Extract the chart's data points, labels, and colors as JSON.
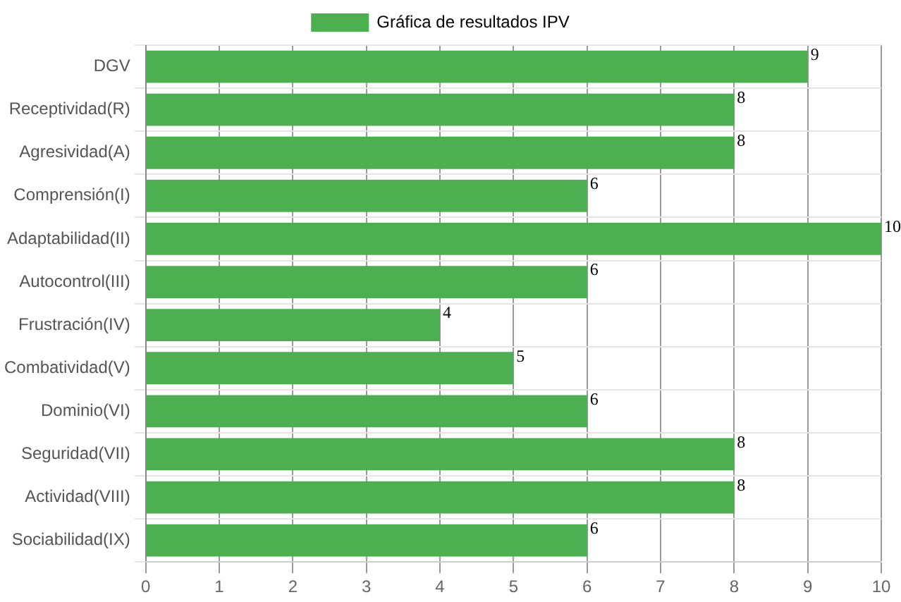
{
  "chart_data": {
    "type": "bar",
    "orientation": "horizontal",
    "categories": [
      "DGV",
      "Receptividad(R)",
      "Agresividad(A)",
      "Comprensión(I)",
      "Adaptabilidad(II)",
      "Autocontrol(III)",
      "Frustración(IV)",
      "Combatividad(V)",
      "Dominio(VI)",
      "Seguridad(VII)",
      "Actividad(VIII)",
      "Sociabilidad(IX)"
    ],
    "series": [
      {
        "name": "Gráfica de resultados IPV",
        "color": "#4caf50",
        "values": [
          9,
          8,
          8,
          6,
          10,
          6,
          4,
          5,
          6,
          8,
          8,
          6
        ]
      }
    ],
    "xlim": [
      0,
      10
    ],
    "xticks": [
      0,
      1,
      2,
      3,
      4,
      5,
      6,
      7,
      8,
      9,
      10
    ],
    "grid": true,
    "legend": "top",
    "data_labels": true
  }
}
